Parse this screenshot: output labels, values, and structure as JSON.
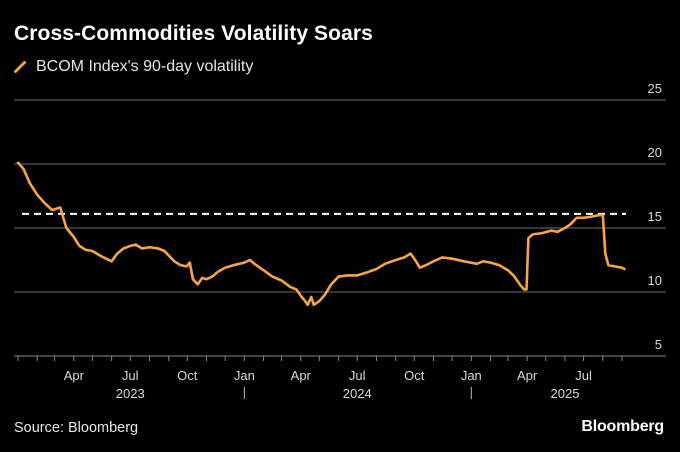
{
  "header": {
    "title": "Cross-Commodities Volatility Soars",
    "legend_label": "BCOM Index's 90-day volatility"
  },
  "footer": {
    "source": "Source: Bloomberg",
    "brand": "Bloomberg"
  },
  "colors": {
    "line": "#f5a543",
    "grid": "#6e6e6e",
    "reference_line": "#ffffff",
    "background": "#000000"
  },
  "chart_data": {
    "type": "line",
    "y_axis": {
      "position": "right",
      "ticks": [
        5,
        10,
        15,
        20,
        25
      ],
      "range": [
        5,
        25
      ]
    },
    "x_axis": {
      "range": [
        "2023-01-01",
        "2025-09-30"
      ],
      "month_ticks": [
        {
          "label": "Apr",
          "date": "2023-04-01"
        },
        {
          "label": "Jul",
          "date": "2023-07-01"
        },
        {
          "label": "Oct",
          "date": "2023-10-01"
        },
        {
          "label": "Jan",
          "date": "2024-01-01"
        },
        {
          "label": "Apr",
          "date": "2024-04-01"
        },
        {
          "label": "Jul",
          "date": "2024-07-01"
        },
        {
          "label": "Oct",
          "date": "2024-10-01"
        },
        {
          "label": "Jan",
          "date": "2025-01-01"
        },
        {
          "label": "Apr",
          "date": "2025-04-01"
        },
        {
          "label": "Jul",
          "date": "2025-07-01"
        }
      ],
      "year_labels": [
        {
          "label": "2023",
          "date": "2023-07-01"
        },
        {
          "label": "2024",
          "date": "2024-07-01"
        },
        {
          "label": "2025",
          "date": "2025-06-01"
        }
      ],
      "year_separators": [
        "2024-01-01",
        "2025-01-01"
      ]
    },
    "grid": true,
    "legend_placement": "top-left",
    "reference_line": {
      "value": 16.1,
      "style": "dashed"
    },
    "series": [
      {
        "name": "BCOM Index's 90-day volatility",
        "points": [
          [
            "2023-01-01",
            20.1
          ],
          [
            "2023-01-10",
            19.6
          ],
          [
            "2023-01-20",
            18.5
          ],
          [
            "2023-02-01",
            17.6
          ],
          [
            "2023-02-12",
            17.0
          ],
          [
            "2023-02-25",
            16.4
          ],
          [
            "2023-03-10",
            16.6
          ],
          [
            "2023-03-20",
            15.0
          ],
          [
            "2023-04-01",
            14.3
          ],
          [
            "2023-04-10",
            13.6
          ],
          [
            "2023-04-20",
            13.3
          ],
          [
            "2023-05-01",
            13.2
          ],
          [
            "2023-05-15",
            12.8
          ],
          [
            "2023-06-01",
            12.4
          ],
          [
            "2023-06-10",
            13.0
          ],
          [
            "2023-06-20",
            13.4
          ],
          [
            "2023-07-01",
            13.6
          ],
          [
            "2023-07-10",
            13.7
          ],
          [
            "2023-07-20",
            13.4
          ],
          [
            "2023-08-01",
            13.5
          ],
          [
            "2023-08-15",
            13.4
          ],
          [
            "2023-08-25",
            13.2
          ],
          [
            "2023-09-10",
            12.4
          ],
          [
            "2023-09-20",
            12.1
          ],
          [
            "2023-09-30",
            12.0
          ],
          [
            "2023-10-05",
            12.3
          ],
          [
            "2023-10-10",
            11.0
          ],
          [
            "2023-10-18",
            10.6
          ],
          [
            "2023-10-25",
            11.1
          ],
          [
            "2023-11-01",
            11.0
          ],
          [
            "2023-11-10",
            11.2
          ],
          [
            "2023-11-20",
            11.6
          ],
          [
            "2023-12-01",
            11.9
          ],
          [
            "2023-12-15",
            12.1
          ],
          [
            "2024-01-01",
            12.3
          ],
          [
            "2024-01-10",
            12.5
          ],
          [
            "2024-01-20",
            12.1
          ],
          [
            "2024-02-01",
            11.7
          ],
          [
            "2024-02-15",
            11.2
          ],
          [
            "2024-03-01",
            10.9
          ],
          [
            "2024-03-15",
            10.4
          ],
          [
            "2024-03-25",
            10.2
          ],
          [
            "2024-04-01",
            9.7
          ],
          [
            "2024-04-08",
            9.3
          ],
          [
            "2024-04-12",
            9.0
          ],
          [
            "2024-04-18",
            9.6
          ],
          [
            "2024-04-22",
            9.0
          ],
          [
            "2024-05-01",
            9.3
          ],
          [
            "2024-05-10",
            9.8
          ],
          [
            "2024-05-20",
            10.6
          ],
          [
            "2024-06-01",
            11.2
          ],
          [
            "2024-06-15",
            11.3
          ],
          [
            "2024-07-01",
            11.3
          ],
          [
            "2024-07-15",
            11.5
          ],
          [
            "2024-08-01",
            11.8
          ],
          [
            "2024-08-15",
            12.2
          ],
          [
            "2024-09-01",
            12.5
          ],
          [
            "2024-09-15",
            12.7
          ],
          [
            "2024-09-25",
            13.0
          ],
          [
            "2024-10-01",
            12.6
          ],
          [
            "2024-10-10",
            11.9
          ],
          [
            "2024-10-20",
            12.1
          ],
          [
            "2024-11-01",
            12.4
          ],
          [
            "2024-11-15",
            12.7
          ],
          [
            "2024-12-01",
            12.6
          ],
          [
            "2024-12-20",
            12.4
          ],
          [
            "2025-01-10",
            12.2
          ],
          [
            "2025-01-20",
            12.4
          ],
          [
            "2025-02-01",
            12.3
          ],
          [
            "2025-02-15",
            12.1
          ],
          [
            "2025-03-01",
            11.7
          ],
          [
            "2025-03-10",
            11.3
          ],
          [
            "2025-03-20",
            10.6
          ],
          [
            "2025-03-27",
            10.2
          ],
          [
            "2025-03-31",
            10.2
          ],
          [
            "2025-04-03",
            14.2
          ],
          [
            "2025-04-10",
            14.5
          ],
          [
            "2025-04-25",
            14.6
          ],
          [
            "2025-05-10",
            14.8
          ],
          [
            "2025-05-20",
            14.7
          ],
          [
            "2025-06-01",
            15.0
          ],
          [
            "2025-06-10",
            15.3
          ],
          [
            "2025-06-20",
            15.8
          ],
          [
            "2025-07-01",
            15.8
          ],
          [
            "2025-07-15",
            15.9
          ],
          [
            "2025-07-25",
            16.0
          ],
          [
            "2025-08-01",
            16.0
          ],
          [
            "2025-08-05",
            13.0
          ],
          [
            "2025-08-10",
            12.1
          ],
          [
            "2025-08-20",
            12.0
          ],
          [
            "2025-09-01",
            11.9
          ],
          [
            "2025-09-05",
            11.8
          ]
        ]
      }
    ]
  }
}
